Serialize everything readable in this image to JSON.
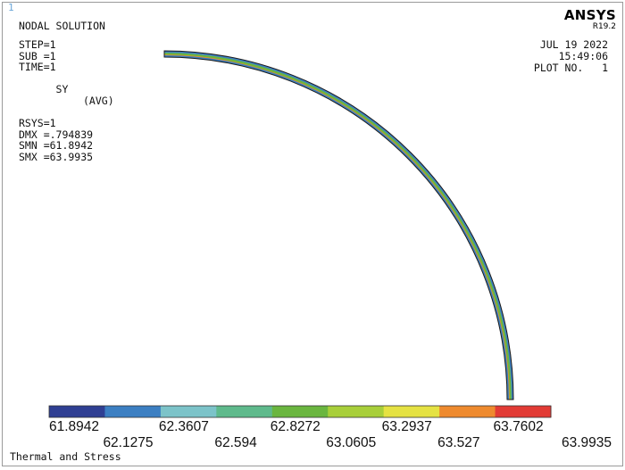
{
  "window": {
    "number": "1"
  },
  "header": {
    "title": "NODAL SOLUTION"
  },
  "info": {
    "step": "STEP=1",
    "sub": "SUB =1",
    "time": "TIME=1",
    "sy": "SY",
    "avg": "(AVG)",
    "rsys": "RSYS=1",
    "dmx": "DMX =.794839",
    "smn": "SMN =61.8942",
    "smx": "SMX =63.9935"
  },
  "logo": {
    "name": "ANSYS",
    "version": "R19.2"
  },
  "datetime": {
    "date": "JUL 19 2022",
    "time": "15:49:06",
    "plot_no": "PLOT NO.   1"
  },
  "legend": {
    "colors": [
      "#2f3f93",
      "#3c7fc2",
      "#7cc3c9",
      "#5fba8c",
      "#6ab63f",
      "#a8cf3a",
      "#e5e243",
      "#ee8a2e",
      "#e23b35"
    ],
    "values": [
      "61.8942",
      "62.1275",
      "62.3607",
      "62.594",
      "62.8272",
      "63.0605",
      "63.2937",
      "63.527",
      "63.7602",
      "63.9935"
    ]
  },
  "footer": {
    "label": "Thermal and Stress"
  }
}
